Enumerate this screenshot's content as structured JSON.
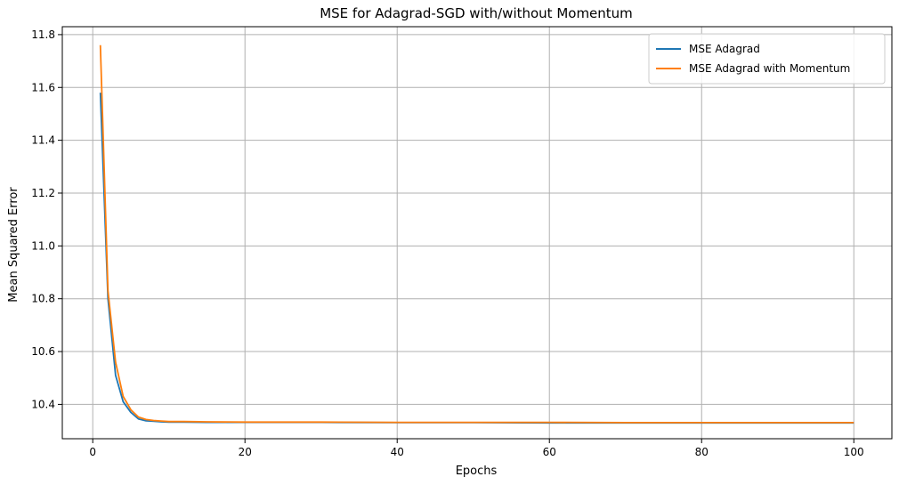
{
  "chart_data": {
    "type": "line",
    "title": "MSE for Adagrad-SGD with/without Momentum",
    "xlabel": "Epochs",
    "ylabel": "Mean Squared Error",
    "xlim": [
      -4,
      105
    ],
    "ylim": [
      10.27,
      11.83
    ],
    "xticks": [
      0,
      20,
      40,
      60,
      80,
      100
    ],
    "yticks": [
      10.4,
      10.6,
      10.8,
      11.0,
      11.2,
      11.4,
      11.6,
      11.8
    ],
    "xtick_labels": [
      "0",
      "20",
      "40",
      "60",
      "80",
      "100"
    ],
    "ytick_labels": [
      "10.4",
      "10.6",
      "10.8",
      "11.0",
      "11.2",
      "11.4",
      "11.6",
      "11.8"
    ],
    "grid": true,
    "legend_position": "top-right",
    "series": [
      {
        "name": "MSE Adagrad",
        "color": "#1f77b4",
        "x": [
          1,
          2,
          3,
          4,
          5,
          6,
          7,
          8,
          9,
          10,
          12,
          15,
          20,
          25,
          30,
          40,
          50,
          60,
          70,
          80,
          90,
          100
        ],
        "values": [
          11.58,
          10.8,
          10.51,
          10.41,
          10.37,
          10.345,
          10.338,
          10.336,
          10.334,
          10.333,
          10.333,
          10.332,
          10.332,
          10.332,
          10.332,
          10.331,
          10.331,
          10.33,
          10.33,
          10.33,
          10.33,
          10.33
        ]
      },
      {
        "name": "MSE Adagrad with Momentum",
        "color": "#ff7f0e",
        "x": [
          1,
          2,
          3,
          4,
          5,
          6,
          7,
          8,
          9,
          10,
          12,
          15,
          20,
          25,
          30,
          40,
          50,
          60,
          70,
          80,
          90,
          100
        ],
        "values": [
          11.76,
          10.83,
          10.56,
          10.43,
          10.38,
          10.352,
          10.343,
          10.339,
          10.337,
          10.335,
          10.335,
          10.334,
          10.333,
          10.333,
          10.333,
          10.332,
          10.332,
          10.332,
          10.331,
          10.331,
          10.331,
          10.331
        ]
      }
    ]
  }
}
